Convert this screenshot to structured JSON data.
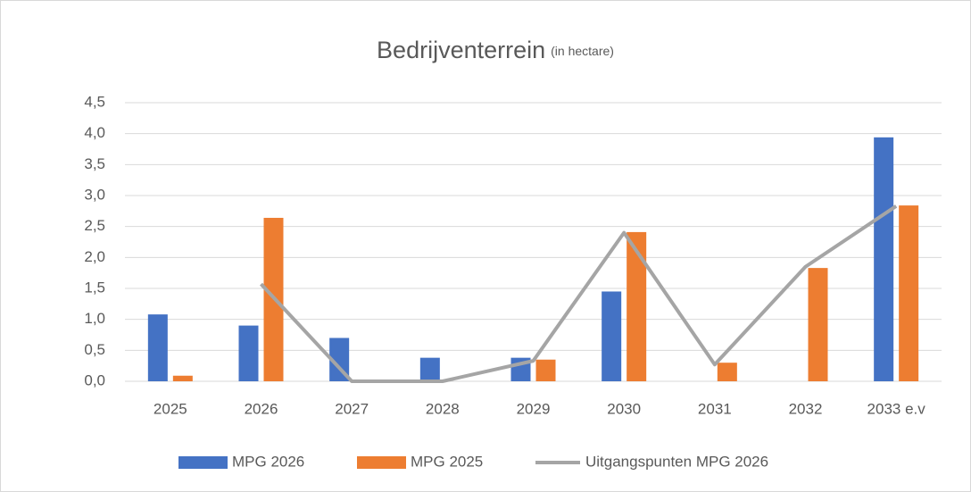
{
  "chart_data": {
    "type": "bar",
    "title": "Bedrijventerrein",
    "subtitle": "(in hectare)",
    "categories": [
      "2025",
      "2026",
      "2027",
      "2028",
      "2029",
      "2030",
      "2031",
      "2032",
      "2033 e.v"
    ],
    "series": [
      {
        "name": "MPG 2026",
        "type": "bar",
        "color": "#4472c4",
        "values": [
          1.08,
          0.9,
          0.7,
          0.38,
          0.38,
          1.45,
          0,
          0,
          3.94
        ]
      },
      {
        "name": "MPG 2025",
        "type": "bar",
        "color": "#ed7d31",
        "values": [
          0.09,
          2.64,
          0,
          0,
          0.35,
          2.41,
          0.3,
          1.83,
          2.84
        ]
      },
      {
        "name": "Uitgangspunten MPG 2026",
        "type": "line",
        "color": "#a5a5a5",
        "values": [
          null,
          1.57,
          0,
          0,
          0.33,
          2.4,
          0.27,
          1.85,
          2.83
        ]
      }
    ],
    "ylim": [
      0,
      4.5
    ],
    "yticks": [
      {
        "value": 0,
        "label": "0,0"
      },
      {
        "value": 0.5,
        "label": "0,5"
      },
      {
        "value": 1,
        "label": "1,0"
      },
      {
        "value": 1.5,
        "label": "1,5"
      },
      {
        "value": 2,
        "label": "2,0"
      },
      {
        "value": 2.5,
        "label": "2,5"
      },
      {
        "value": 3,
        "label": "3,0"
      },
      {
        "value": 3.5,
        "label": "3,5"
      },
      {
        "value": 4,
        "label": "4,0"
      },
      {
        "value": 4.5,
        "label": "4,5"
      }
    ],
    "grid": true,
    "legend": "bottom"
  }
}
